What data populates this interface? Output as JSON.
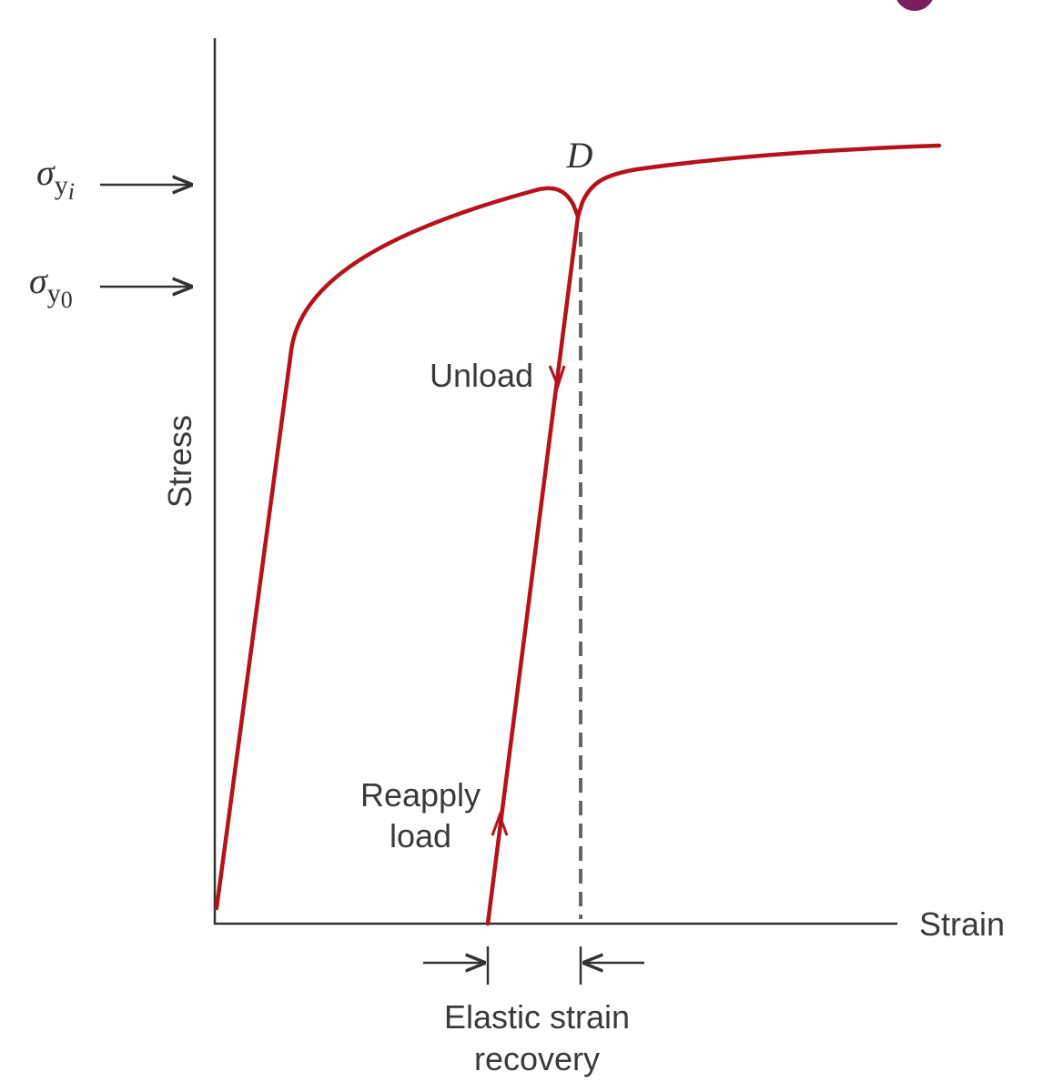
{
  "yield_labels": [
    {
      "symbol": "σ",
      "subscript": "y",
      "index": "i"
    },
    {
      "symbol": "σ",
      "subscript": "y",
      "index": "0"
    }
  ],
  "point_label": "D",
  "y_axis_label": "Stress",
  "x_axis_label": "Strain",
  "unload_label": "Unload",
  "reapply_label": [
    "Reapply",
    "load"
  ],
  "recovery_label": [
    "Elastic strain",
    "recovery"
  ]
}
